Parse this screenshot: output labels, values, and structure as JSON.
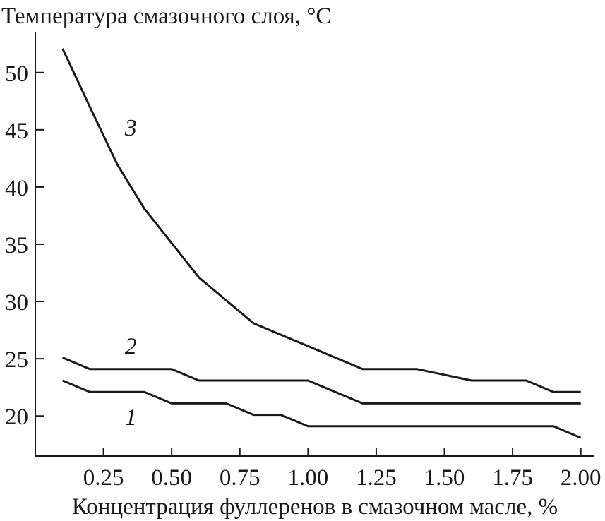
{
  "chart_data": {
    "type": "line",
    "ylabel": "Температура смазочного слоя, °C",
    "xlabel": "Концентрация фуллеренов в смазочном масле, %",
    "xlim": [
      0.0,
      2.05
    ],
    "ylim": [
      16.5,
      53.5
    ],
    "x_ticks": [
      0.25,
      0.5,
      0.75,
      1.0,
      1.25,
      1.5,
      1.75,
      2.0
    ],
    "x_tick_labels": [
      "0.25",
      "0.50",
      "0.75",
      "1.00",
      "1.25",
      "1.50",
      "1.75",
      "2.00"
    ],
    "y_ticks": [
      20,
      25,
      30,
      35,
      40,
      45,
      50
    ],
    "y_tick_labels": [
      "20",
      "25",
      "30",
      "35",
      "40",
      "45",
      "50"
    ],
    "grid": false,
    "legend": "inline labels",
    "series": [
      {
        "name": "1",
        "x": [
          0.1,
          0.2,
          0.4,
          0.5,
          0.7,
          0.8,
          0.9,
          1.0,
          1.9,
          2.0
        ],
        "values": [
          23.1,
          22.1,
          22.1,
          21.1,
          21.1,
          20.1,
          20.1,
          19.1,
          19.1,
          18.1
        ]
      },
      {
        "name": "2",
        "x": [
          0.1,
          0.2,
          0.5,
          0.6,
          1.0,
          1.2,
          2.0
        ],
        "values": [
          25.1,
          24.1,
          24.1,
          23.1,
          23.1,
          21.1,
          21.1
        ]
      },
      {
        "name": "3",
        "x": [
          0.1,
          0.2,
          0.3,
          0.4,
          0.5,
          0.6,
          0.8,
          1.0,
          1.2,
          1.4,
          1.6,
          1.8,
          1.9,
          2.0
        ],
        "values": [
          52.1,
          47.0,
          42.0,
          38.1,
          35.1,
          32.1,
          28.1,
          26.1,
          24.1,
          24.1,
          23.1,
          23.1,
          22.1,
          22.1
        ]
      }
    ]
  }
}
